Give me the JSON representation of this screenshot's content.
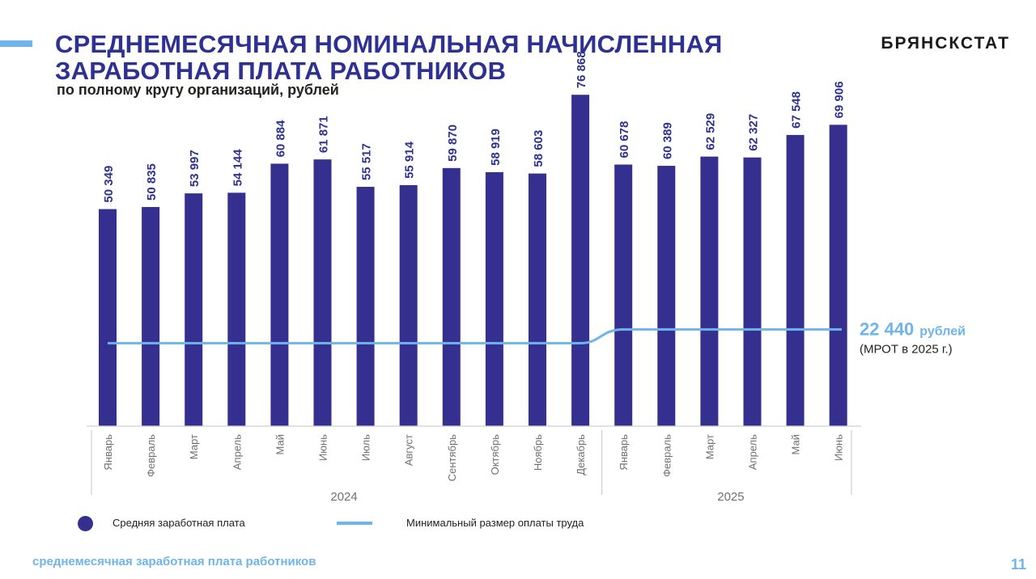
{
  "header": {
    "title_line1": "СРЕДНЕМЕСЯЧНАЯ НОМИНАЛЬНАЯ НАЧИСЛЕННАЯ",
    "title_line2": "ЗАРАБОТНАЯ ПЛАТА РАБОТНИКОВ",
    "subtitle": "по полному кругу организаций, рублей",
    "brand": "БРЯНСКСТАТ"
  },
  "colors": {
    "accent": "#6fb4ea",
    "bar": "#35308f",
    "title": "#2e3192"
  },
  "chart_data": {
    "type": "bar",
    "categories": [
      "Январь",
      "Февраль",
      "Март",
      "Апрель",
      "Май",
      "Июнь",
      "Июль",
      "Август",
      "Сентябрь",
      "Октябрь",
      "Ноябрь",
      "Декабрь",
      "Январь",
      "Февраль",
      "Март",
      "Апрель",
      "Май",
      "Июнь"
    ],
    "groups": [
      {
        "label": "2024",
        "count": 12
      },
      {
        "label": "2025",
        "count": 6
      }
    ],
    "series": [
      {
        "name": "Средняя заработная плата",
        "type": "bar",
        "values": [
          50349,
          50835,
          53997,
          54144,
          60884,
          61871,
          55517,
          55914,
          59870,
          58919,
          58603,
          76868,
          60678,
          60389,
          62529,
          62327,
          67548,
          69906
        ],
        "labels": [
          "50 349",
          "50 835",
          "53 997",
          "54 144",
          "60 884",
          "61 871",
          "55 517",
          "55 914",
          "59 870",
          "58 919",
          "58 603",
          "76 868",
          "60 678",
          "60 389",
          "62 529",
          "62 327",
          "67 548",
          "69 906"
        ]
      },
      {
        "name": "Минимальный размер оплаты труда",
        "type": "line",
        "values": [
          19242,
          19242,
          19242,
          19242,
          19242,
          19242,
          19242,
          19242,
          19242,
          19242,
          19242,
          19242,
          22440,
          22440,
          22440,
          22440,
          22440,
          22440
        ]
      }
    ],
    "annotation": {
      "value_text": "22 440",
      "unit_text": "рублей",
      "note": "(МРОТ в 2025 г.)"
    },
    "ylim": [
      0,
      80000
    ],
    "grid": false,
    "legend": "bottom-left"
  },
  "footer": {
    "text": "среднемесячная заработная плата работников",
    "page_number": "11"
  }
}
